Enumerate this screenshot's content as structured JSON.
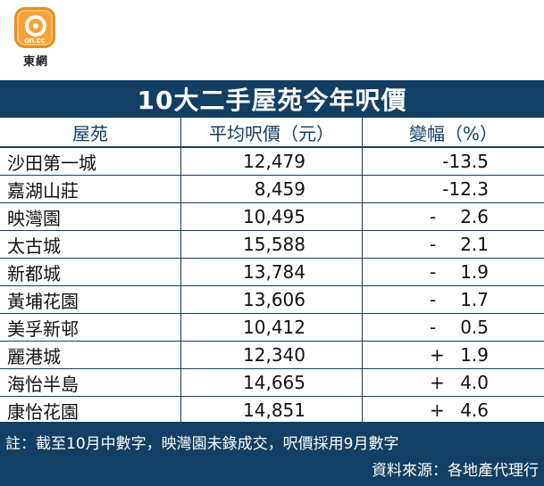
{
  "logo": {
    "brand": "on.cc",
    "name": "東網"
  },
  "title": "10大二手屋苑今年呎價",
  "table": {
    "headers": [
      "屋苑",
      "平均呎價（元）",
      "變幅（%）"
    ],
    "rows": [
      {
        "estate": "沙田第一城",
        "price": "12,479",
        "sign": "",
        "change": "-13.5"
      },
      {
        "estate": "嘉湖山莊",
        "price": "8,459",
        "sign": "",
        "change": "-12.3"
      },
      {
        "estate": "映灣園",
        "price": "10,495",
        "sign": "-",
        "change": "2.6"
      },
      {
        "estate": "太古城",
        "price": "15,588",
        "sign": "-",
        "change": "2.1"
      },
      {
        "estate": "新都城",
        "price": "13,784",
        "sign": "-",
        "change": "1.9"
      },
      {
        "estate": "黃埔花園",
        "price": "13,606",
        "sign": "-",
        "change": "1.7"
      },
      {
        "estate": "美孚新邨",
        "price": "10,412",
        "sign": "-",
        "change": "0.5"
      },
      {
        "estate": "麗港城",
        "price": "12,340",
        "sign": "+",
        "change": "1.9"
      },
      {
        "estate": "海怡半島",
        "price": "14,665",
        "sign": "+",
        "change": "4.0"
      },
      {
        "estate": "康怡花園",
        "price": "14,851",
        "sign": "+",
        "change": "4.6"
      }
    ]
  },
  "footer": {
    "note": "註：截至10月中數字，映灣園未錄成交，呎價採用9月數字",
    "source": "資料來源：各地產代理行"
  }
}
